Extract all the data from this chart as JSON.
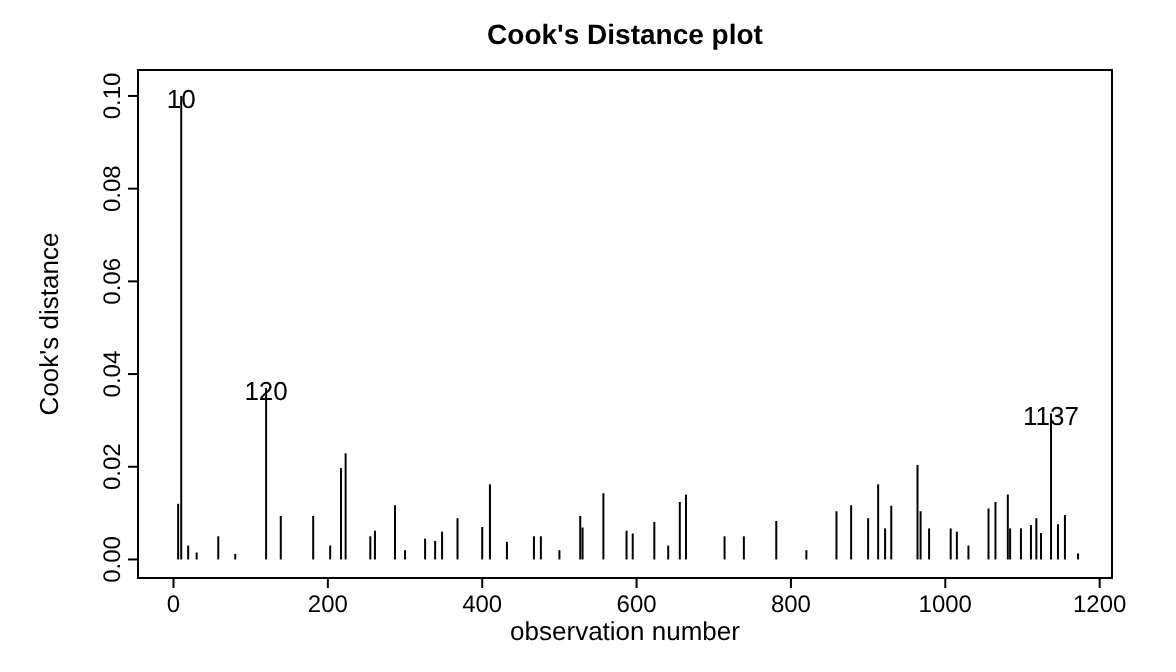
{
  "chart_data": {
    "type": "bar",
    "title": "Cook's Distance plot",
    "xlabel": "observation number",
    "ylabel": "Cook's distance",
    "x": [
      6,
      10,
      19,
      30,
      58,
      80,
      120,
      139,
      181,
      203,
      217,
      223,
      255,
      261,
      287,
      300,
      326,
      339,
      348,
      368,
      400,
      410,
      432,
      467,
      476,
      500,
      527,
      530,
      557,
      587,
      595,
      623,
      641,
      656,
      664,
      714,
      739,
      781,
      820,
      859,
      878,
      900,
      913,
      922,
      930,
      964,
      968,
      979,
      1007,
      1015,
      1030,
      1056,
      1065,
      1081,
      1084,
      1098,
      1111,
      1118,
      1124,
      1137,
      1146,
      1155,
      1172
    ],
    "values": [
      0.012,
      0.1,
      0.003,
      0.0015,
      0.005,
      0.0012,
      0.037,
      0.0094,
      0.0094,
      0.003,
      0.0197,
      0.0229,
      0.005,
      0.0062,
      0.0117,
      0.002,
      0.0045,
      0.004,
      0.006,
      0.0089,
      0.007,
      0.0162,
      0.0038,
      0.005,
      0.005,
      0.002,
      0.0094,
      0.0069,
      0.0143,
      0.0062,
      0.0056,
      0.0081,
      0.003,
      0.0124,
      0.014,
      0.005,
      0.005,
      0.0083,
      0.002,
      0.0104,
      0.0117,
      0.0089,
      0.0162,
      0.0067,
      0.0116,
      0.0204,
      0.0104,
      0.0067,
      0.0067,
      0.006,
      0.003,
      0.011,
      0.0124,
      0.014,
      0.0067,
      0.0067,
      0.0074,
      0.0089,
      0.0057,
      0.0315,
      0.0076,
      0.0096,
      0.0013
    ],
    "color": "#000000",
    "annotations": [
      {
        "text": "10",
        "x": 10,
        "y": 0.1
      },
      {
        "text": "120",
        "x": 120,
        "y": 0.037
      },
      {
        "text": "1137",
        "x": 1137,
        "y": 0.0315
      }
    ],
    "xlim": [
      -46,
      1216
    ],
    "xticks": [
      0,
      200,
      400,
      600,
      800,
      1000,
      1200
    ],
    "ylim": [
      -0.004,
      0.1056
    ],
    "yticks": [
      {
        "value": 0,
        "label": "0.00"
      },
      {
        "value": 0.02,
        "label": "0.02"
      },
      {
        "value": 0.04,
        "label": "0.04"
      },
      {
        "value": 0.06,
        "label": "0.06"
      },
      {
        "value": 0.08,
        "label": "0.08"
      },
      {
        "value": 0.1,
        "label": "0.10"
      }
    ],
    "grid": false
  }
}
